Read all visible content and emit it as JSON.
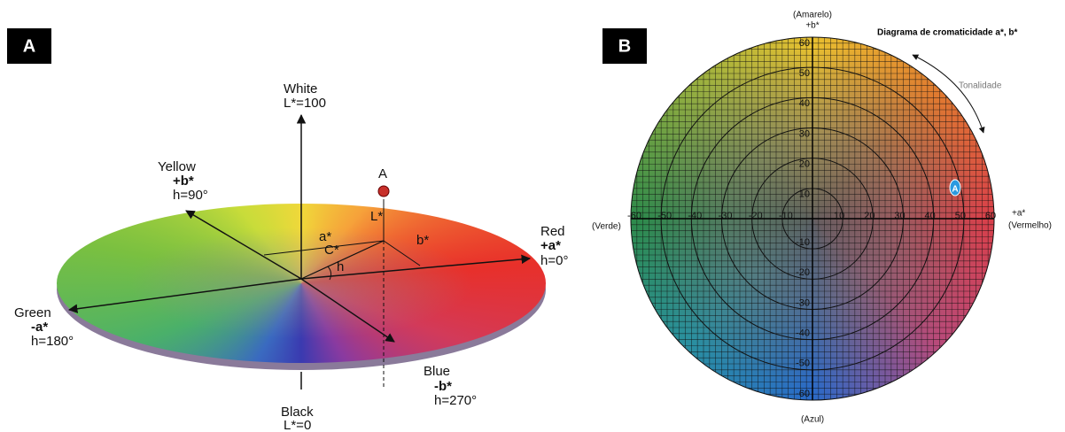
{
  "panel_a": {
    "label": "A",
    "white": "White",
    "white_l": "L*=100",
    "yellow": "Yellow",
    "yellow_b": "+b*",
    "yellow_h": "h=90°",
    "red": "Red",
    "red_a": "+a*",
    "red_h": "h=0°",
    "green": "Green",
    "green_a": "-a*",
    "green_h": "h=180°",
    "blue": "Blue",
    "blue_b": "-b*",
    "blue_h": "h=270°",
    "black": "Black",
    "black_l": "L*=0",
    "point": "A",
    "l_star": "L*",
    "a_star": "a*",
    "b_star": "b*",
    "c_star": "C*",
    "h": "h"
  },
  "panel_b": {
    "label": "B",
    "title": "Diagrama de cromaticidade a*, b*",
    "top_name": "(Amarelo)",
    "top_axis": "+b*",
    "right_axis": "+a*",
    "right_name": "(Vermelho)",
    "left_name": "(Verde)",
    "bottom_name": "(Azul)",
    "hue": "Tonalidade",
    "point": "A",
    "x_ticks": [
      -60,
      -50,
      -40,
      -30,
      -20,
      -10,
      10,
      20,
      30,
      40,
      50,
      60
    ],
    "y_ticks": [
      60,
      50,
      40,
      30,
      20,
      10,
      -10,
      -20,
      -30,
      -40,
      -50,
      -60
    ]
  }
}
